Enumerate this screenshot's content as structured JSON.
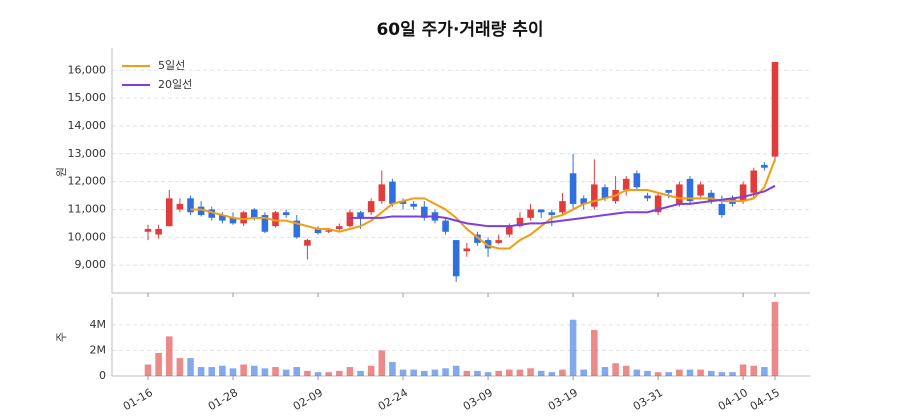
{
  "chart_data": {
    "type": "candlestick",
    "title": "60일 주가·거래량 추이",
    "y_label": "원",
    "volume_label": "주",
    "categories": [
      "01-16",
      null,
      null,
      null,
      null,
      null,
      null,
      null,
      "01-28",
      null,
      null,
      null,
      null,
      null,
      null,
      null,
      "02-09",
      null,
      null,
      null,
      null,
      null,
      null,
      null,
      "02-24",
      null,
      null,
      null,
      null,
      null,
      null,
      null,
      "03-09",
      null,
      null,
      null,
      null,
      null,
      null,
      null,
      "03-19",
      null,
      null,
      null,
      null,
      null,
      null,
      null,
      "03-31",
      null,
      null,
      null,
      null,
      null,
      null,
      null,
      "04-10",
      null,
      null,
      "04-15"
    ],
    "open": [
      10200,
      10100,
      10400,
      11000,
      11400,
      11100,
      11000,
      10800,
      10700,
      10500,
      11000,
      10800,
      10400,
      10900,
      10600,
      9700,
      10300,
      10200,
      10300,
      10400,
      10900,
      10900,
      11300,
      12000,
      11300,
      11200,
      11100,
      10900,
      10600,
      9900,
      9500,
      10100,
      9900,
      9800,
      10100,
      10400,
      10700,
      11000,
      10900,
      10900,
      12300,
      11400,
      11100,
      11800,
      11300,
      11700,
      12300,
      11500,
      10900,
      11700,
      11200,
      12100,
      11500,
      11600,
      11200,
      11400,
      11300,
      11600,
      12600,
      12900
    ],
    "high": [
      10450,
      10450,
      11700,
      11400,
      11500,
      11300,
      11100,
      10900,
      10900,
      10950,
      11050,
      10900,
      10950,
      11000,
      10800,
      9950,
      10400,
      10300,
      10500,
      11000,
      10950,
      11400,
      12400,
      12100,
      11400,
      11300,
      11300,
      11000,
      10700,
      9900,
      9800,
      10200,
      10000,
      10100,
      10500,
      10900,
      11200,
      11000,
      11000,
      11600,
      13000,
      11500,
      12800,
      11900,
      12200,
      12200,
      12400,
      11600,
      11600,
      11700,
      12000,
      12200,
      12000,
      11700,
      11500,
      11500,
      12000,
      12500,
      12700,
      16300
    ],
    "low": [
      9900,
      9950,
      10400,
      10900,
      10800,
      10750,
      10600,
      10500,
      10450,
      10400,
      10600,
      10150,
      10350,
      10700,
      9950,
      9200,
      10100,
      10150,
      10250,
      10350,
      10300,
      10800,
      11200,
      11100,
      11000,
      11000,
      10600,
      10500,
      10100,
      8400,
      9300,
      9700,
      9300,
      9750,
      10000,
      10350,
      10600,
      10700,
      10400,
      10800,
      11000,
      11000,
      11000,
      11300,
      11200,
      11500,
      11700,
      11300,
      10800,
      11400,
      11100,
      11200,
      11400,
      11200,
      10700,
      11100,
      11200,
      11400,
      12400,
      12700
    ],
    "close": [
      10300,
      10300,
      11400,
      11200,
      10900,
      10800,
      10700,
      10600,
      10500,
      10900,
      10700,
      10200,
      10900,
      10800,
      10000,
      9900,
      10150,
      10250,
      10400,
      10900,
      10700,
      11300,
      11900,
      11200,
      11200,
      11100,
      10700,
      10600,
      10200,
      8600,
      9600,
      9800,
      9600,
      9900,
      10400,
      10700,
      11000,
      10900,
      10800,
      11300,
      11200,
      11200,
      11900,
      11400,
      11700,
      12100,
      11800,
      11400,
      11500,
      11600,
      11900,
      11300,
      11900,
      11300,
      10800,
      11200,
      11900,
      12400,
      12500,
      16300
    ],
    "volume": [
      900000,
      1800000,
      3100000,
      1400000,
      1400000,
      700000,
      700000,
      800000,
      600000,
      900000,
      800000,
      600000,
      700000,
      500000,
      700000,
      400000,
      300000,
      300000,
      400000,
      700000,
      400000,
      800000,
      2000000,
      1100000,
      500000,
      500000,
      400000,
      500000,
      600000,
      800000,
      400000,
      400000,
      300000,
      400000,
      500000,
      500000,
      600000,
      400000,
      300000,
      500000,
      4400000,
      500000,
      3600000,
      700000,
      1000000,
      800000,
      500000,
      400000,
      300000,
      300000,
      500000,
      500000,
      500000,
      400000,
      300000,
      300000,
      900000,
      800000,
      700000,
      5800000
    ],
    "series": [
      {
        "name": "5일선",
        "color": "#f39c12",
        "values": [
          null,
          null,
          null,
          null,
          11000,
          11000,
          10900,
          10800,
          10700,
          10650,
          10700,
          10700,
          10600,
          10600,
          10500,
          10400,
          10300,
          10300,
          10200,
          10300,
          10400,
          10600,
          10900,
          11200,
          11300,
          11400,
          11400,
          11200,
          11000,
          10700,
          10300,
          10000,
          9700,
          9600,
          9600,
          9900,
          10100,
          10400,
          10700,
          10800,
          11000,
          11200,
          11300,
          11400,
          11500,
          11700,
          11700,
          11700,
          11600,
          11500,
          11400,
          11400,
          11400,
          11400,
          11300,
          11300,
          11300,
          11400,
          11800,
          12800
        ]
      },
      {
        "name": "20일선",
        "color": "#7b3fe0",
        "values": [
          null,
          null,
          null,
          null,
          null,
          null,
          null,
          null,
          null,
          null,
          null,
          null,
          null,
          null,
          null,
          null,
          null,
          null,
          null,
          10700,
          10700,
          10700,
          10700,
          10750,
          10750,
          10750,
          10750,
          10750,
          10700,
          10600,
          10500,
          10450,
          10400,
          10400,
          10400,
          10450,
          10500,
          10500,
          10550,
          10600,
          10650,
          10700,
          10750,
          10800,
          10850,
          10900,
          10900,
          10900,
          11000,
          11100,
          11200,
          11200,
          11250,
          11300,
          11350,
          11400,
          11450,
          11550,
          11650,
          11850
        ]
      }
    ],
    "up_color": "#e03c3c",
    "down_color": "#2f6fde",
    "ylim": [
      8000,
      16800
    ],
    "yticks": [
      {
        "value": 9000,
        "label": "9,000"
      },
      {
        "value": 10000,
        "label": "10,000"
      },
      {
        "value": 11000,
        "label": "11,000"
      },
      {
        "value": 12000,
        "label": "12,000"
      },
      {
        "value": 13000,
        "label": "13,000"
      },
      {
        "value": 14000,
        "label": "14,000"
      },
      {
        "value": 15000,
        "label": "15,000"
      },
      {
        "value": 16000,
        "label": "16,000"
      }
    ],
    "volume_ylim": [
      0,
      6100000
    ],
    "volume_yticks": [
      {
        "value": 0,
        "label": "0"
      },
      {
        "value": 2000000,
        "label": "2M"
      },
      {
        "value": 4000000,
        "label": "4M"
      }
    ],
    "grid": true,
    "legend": "upper left"
  }
}
